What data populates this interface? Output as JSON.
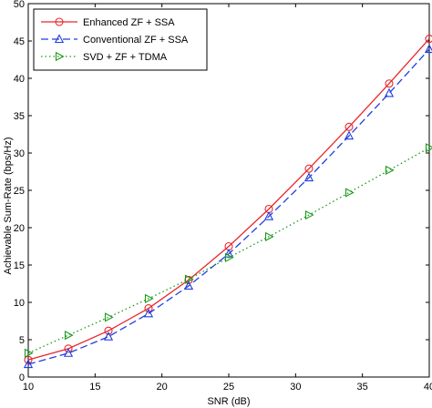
{
  "chart_data": {
    "type": "line",
    "title": "",
    "xlabel": "SNR (dB)",
    "ylabel": "Achievable Sum-Rate (bps/Hz)",
    "xlim": [
      10,
      40
    ],
    "ylim": [
      0,
      50
    ],
    "xticks": [
      10,
      15,
      20,
      25,
      30,
      35,
      40
    ],
    "yticks": [
      0,
      5,
      10,
      15,
      20,
      25,
      30,
      35,
      40,
      45,
      50
    ],
    "grid": false,
    "legend_position": "top-left",
    "x": [
      10,
      13,
      16,
      19,
      22,
      25,
      28,
      31,
      34,
      37,
      40
    ],
    "series": [
      {
        "name": "Enhanced ZF + SSA",
        "color": "#e8262a",
        "line_style": "solid",
        "marker": "circle",
        "values": [
          2.3,
          3.8,
          6.2,
          9.2,
          13.0,
          17.5,
          22.5,
          27.9,
          33.5,
          39.3,
          45.3
        ]
      },
      {
        "name": "Conventional ZF + SSA",
        "color": "#1f3fe0",
        "line_style": "dashed",
        "marker": "triangle-up",
        "values": [
          1.7,
          3.2,
          5.4,
          8.5,
          12.2,
          16.5,
          21.5,
          26.7,
          32.3,
          38.0,
          43.9
        ]
      },
      {
        "name": "SVD + ZF + TDMA",
        "color": "#1a9a1a",
        "line_style": "dotted",
        "marker": "triangle-right",
        "values": [
          3.2,
          5.6,
          8.0,
          10.5,
          13.1,
          16.0,
          18.8,
          21.7,
          24.7,
          27.7,
          30.7
        ]
      }
    ]
  }
}
